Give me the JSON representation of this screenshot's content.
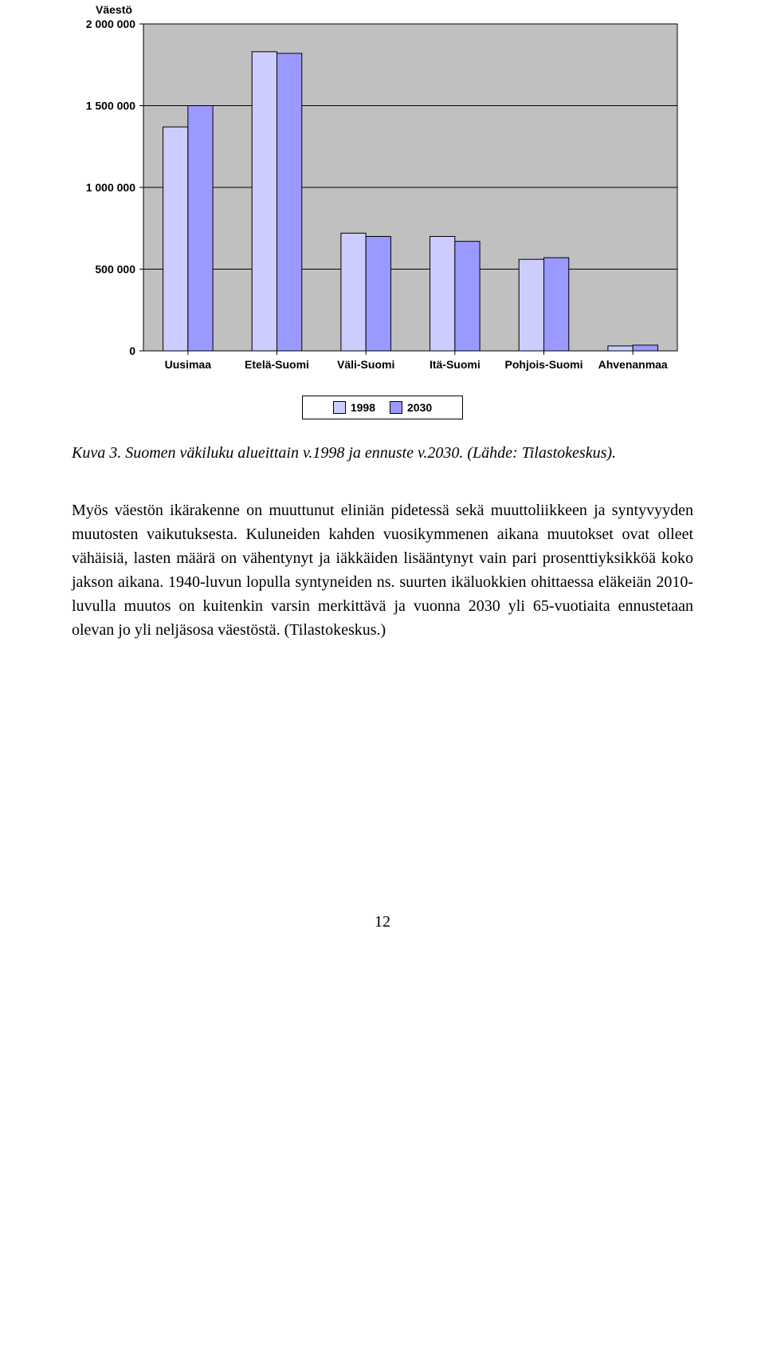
{
  "chart": {
    "type": "bar",
    "title": "Väestö",
    "title_fontsize": 14,
    "title_fontweight": 700,
    "categories": [
      "Uusimaa",
      "Etelä-Suomi",
      "Väli-Suomi",
      "Itä-Suomi",
      "Pohjois-Suomi",
      "Ahvenanmaa"
    ],
    "series": [
      {
        "name": "1998",
        "color": "#ccccff",
        "values": [
          1370000,
          1830000,
          720000,
          700000,
          560000,
          30000
        ]
      },
      {
        "name": "2030",
        "color": "#9999ff",
        "values": [
          1500000,
          1820000,
          700000,
          670000,
          570000,
          35000
        ]
      }
    ],
    "ylabel_ticks": [
      "0",
      "500 000",
      "1 000 000",
      "1 500 000",
      "2 000 000"
    ],
    "ylim": [
      0,
      2000000
    ],
    "ytick_step": 500000,
    "plot_background": "#c0c0c0",
    "axis_color": "#000000",
    "gridline_color": "#000000",
    "bar_border_color": "#000000",
    "x_axis_font": {
      "family": "Arial",
      "size": 14,
      "weight": 700
    },
    "y_axis_font": {
      "family": "Arial",
      "size": 14,
      "weight": 700
    },
    "legend_border": "#000000",
    "legend_font": {
      "family": "Arial",
      "size": 14,
      "weight": 700
    },
    "bar_gap_within_group": 0,
    "group_width_ratio": 0.56
  },
  "caption": "Kuva 3. Suomen väkiluku alueittain v.1998 ja ennuste v.2030. (Lähde: Tilastokeskus).",
  "body_text": "Myös väestön ikärakenne on muuttunut eliniän pidetessä sekä muuttoliikkeen ja syntyvyyden muutosten vaikutuksesta. Kuluneiden kahden vuosikymmenen aikana muutokset ovat olleet vähäisiä, lasten määrä on vähentynyt ja iäkkäiden lisääntynyt vain pari prosenttiyksikköä koko jakson aikana. 1940-luvun lopulla syntyneiden ns. suurten ikäluokkien ohittaessa eläkeiän 2010-luvulla muutos on kuitenkin varsin merkittävä ja vuonna 2030 yli 65-vuotiaita ennustetaan olevan jo yli neljäsosa väestöstä. (Tilastokeskus.)",
  "page_number": "12"
}
